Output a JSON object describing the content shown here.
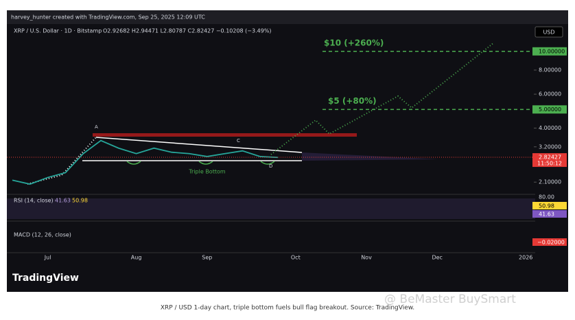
{
  "header": {
    "credit": "harvey_hunter created with TradingView.com, Sep 25, 2025 12:09 UTC",
    "symbol": "XRP / U.S. Dollar · 1D · Bitstamp",
    "ohlc": "O2.92682 H2.94471 L2.80787 C2.82427 −0.10208 (−3.49%)",
    "currency": "USD"
  },
  "chart_data": {
    "type": "line",
    "log_scale": true,
    "categories": [
      null,
      null,
      "Jul",
      null,
      null,
      null,
      null,
      "Aug",
      null,
      null,
      null,
      "Sep",
      null,
      null,
      null,
      null,
      "Oct",
      null,
      null,
      null,
      "Nov",
      null,
      null,
      null,
      "Dec",
      null,
      null,
      null,
      null,
      "2026",
      null
    ],
    "series": [
      {
        "name": "XRP / USD",
        "color": "#26a69a",
        "values": [
          2.15,
          2.05,
          2.22,
          2.35,
          2.95,
          3.45,
          3.15,
          2.95,
          3.15,
          3.0,
          2.95,
          2.85,
          2.95,
          3.05,
          2.85,
          2.82,
          null,
          null,
          null,
          null,
          null,
          null,
          null,
          null,
          null,
          null,
          null,
          null,
          null,
          null,
          null
        ]
      }
    ],
    "ylim": [
      1.83,
      13.3
    ],
    "yticks": [
      {
        "value": 2.1,
        "label": "2.10000"
      },
      {
        "value": 3.2,
        "label": "3.20000"
      },
      {
        "value": 4,
        "label": "4.00000"
      },
      {
        "value": 6,
        "label": "6.00000"
      },
      {
        "value": 8,
        "label": "8.00000"
      }
    ],
    "targets": [
      {
        "value": 10,
        "label": "10.00000",
        "text": "$10 (+260%)"
      },
      {
        "value": 5,
        "label": "5.00000",
        "text": "$5 (+80%)"
      }
    ],
    "last_price": {
      "value": 2.82427,
      "label": "2.82427",
      "time": "11:50:12"
    },
    "annotations": [
      "A",
      "C",
      "D",
      "Triple Bottom"
    ],
    "rsi": {
      "title": "RSI (14, close)",
      "value": 41.63,
      "ma": 50.98,
      "top": "80.00"
    },
    "macd": {
      "title": "MACD (12, 26, close)",
      "value": {
        "value": -0.02,
        "label": "−0.02000"
      }
    }
  },
  "footer": {
    "logo": "TradingView",
    "caption": "XRP / USD 1-day chart, triple bottom fuels bull flag breakout. Source: TradingView.",
    "watermark": "@ BeMaster BuySmart"
  }
}
